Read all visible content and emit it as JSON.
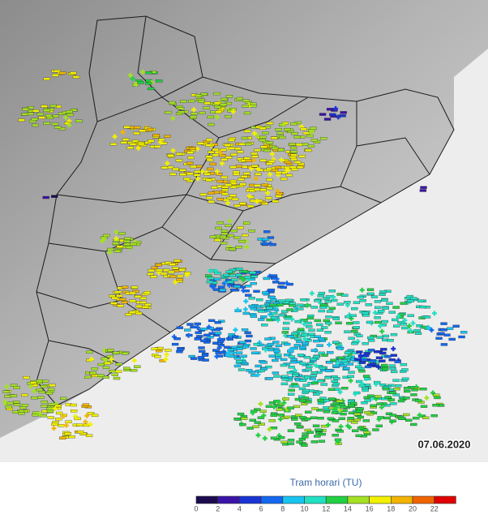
{
  "map": {
    "date_stamp": "07.06.2020",
    "legend": {
      "title": "Tram horari (TU)",
      "ticks": [
        0,
        2,
        4,
        6,
        8,
        10,
        12,
        14,
        16,
        18,
        20,
        22
      ],
      "colors": [
        "#1c0c4e",
        "#3a14a6",
        "#1a34d4",
        "#1468f0",
        "#18c4f0",
        "#22e0c4",
        "#22d044",
        "#a4e024",
        "#f2f000",
        "#f2b400",
        "#f06400",
        "#e00000"
      ]
    }
  }
}
